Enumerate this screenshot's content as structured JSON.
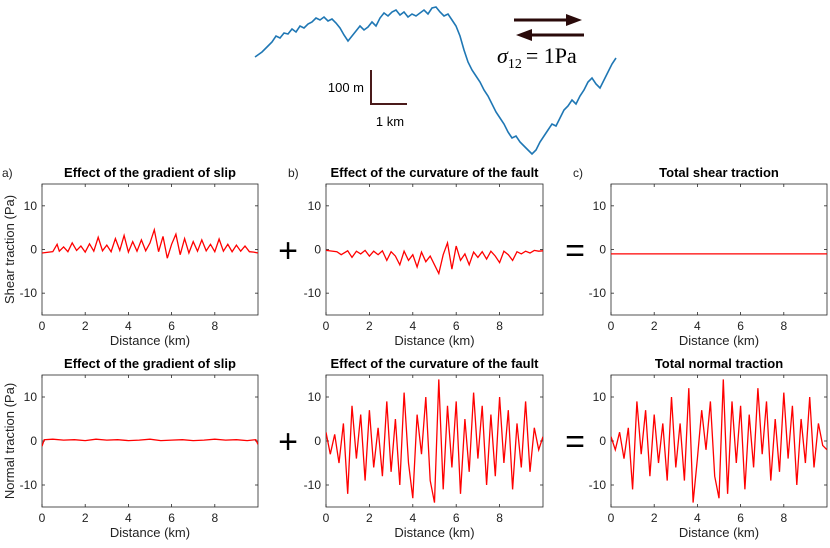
{
  "profile": {
    "scale_vertical_label": "100 m",
    "scale_horizontal_label": "1 km",
    "stress_label_symbol": "σ",
    "stress_label_subscript": "12",
    "stress_label_value": "= 1Pa",
    "line_color": "#1f77b4"
  },
  "chart_data": [
    {
      "type": "line",
      "panel_letter": "a)",
      "title": "Effect of the gradient of slip",
      "xlabel": "Distance (km)",
      "ylabel": "Shear traction (Pa)",
      "xlim": [
        0,
        10
      ],
      "ylim": [
        -15,
        15
      ],
      "xticks": [
        0,
        2,
        4,
        6,
        8
      ],
      "yticks": [
        10,
        0,
        -10
      ],
      "color": "#ff0000",
      "series": [
        {
          "x": [
            0,
            0.5,
            0.7,
            0.8,
            1,
            1.2,
            1.4,
            1.6,
            1.8,
            2,
            2.2,
            2.4,
            2.6,
            2.8,
            3,
            3.2,
            3.4,
            3.6,
            3.8,
            4,
            4.2,
            4.4,
            4.6,
            4.8,
            5,
            5.2,
            5.4,
            5.6,
            5.8,
            6,
            6.2,
            6.4,
            6.6,
            6.8,
            7,
            7.2,
            7.4,
            7.6,
            7.8,
            8,
            8.2,
            8.4,
            8.6,
            8.8,
            9,
            9.2,
            9.4,
            9.6,
            9.8,
            10
          ],
          "y": [
            -0.8,
            -0.5,
            1.2,
            -0.4,
            0.6,
            -0.5,
            1.5,
            -0.2,
            0.8,
            -0.6,
            1.3,
            -0.4,
            2.8,
            -0.3,
            1.0,
            -0.5,
            2.5,
            -0.2,
            3.2,
            -0.6,
            1.8,
            -0.4,
            2.2,
            -0.3,
            1.5,
            4.5,
            -0.5,
            3.0,
            -2.0,
            1.2,
            3.5,
            -1.2,
            2.5,
            -0.8,
            1.8,
            -0.4,
            2.2,
            -0.3,
            1.2,
            -0.5,
            2.4,
            -0.4,
            1.2,
            -0.5,
            1.0,
            -0.4,
            0.8,
            -0.5,
            -0.6,
            -0.8
          ]
        }
      ]
    },
    {
      "type": "line",
      "panel_letter": "b)",
      "title": "Effect of the curvature of the fault",
      "xlabel": "Distance (km)",
      "ylabel": "",
      "xlim": [
        0,
        10
      ],
      "ylim": [
        -15,
        15
      ],
      "xticks": [
        0,
        2,
        4,
        6,
        8
      ],
      "yticks": [
        10,
        0,
        -10
      ],
      "color": "#ff0000",
      "series": [
        {
          "x": [
            0,
            0.5,
            0.7,
            1,
            1.2,
            1.4,
            1.6,
            1.8,
            2,
            2.2,
            2.4,
            2.6,
            2.8,
            3,
            3.2,
            3.4,
            3.6,
            3.8,
            4,
            4.2,
            4.4,
            4.6,
            4.8,
            5,
            5.2,
            5.4,
            5.6,
            5.8,
            6,
            6.2,
            6.4,
            6.6,
            6.8,
            7,
            7.2,
            7.4,
            7.6,
            7.8,
            8,
            8.2,
            8.4,
            8.6,
            8.8,
            9,
            9.2,
            9.4,
            9.6,
            9.8,
            10
          ],
          "y": [
            -0.2,
            -0.5,
            -1.2,
            -0.3,
            -1.8,
            -0.4,
            -1.0,
            -0.2,
            -1.5,
            -0.4,
            -1.2,
            -0.3,
            -2.5,
            -0.5,
            -1.5,
            -3.5,
            -0.4,
            -2.5,
            -1.2,
            -4.0,
            -0.6,
            -2.8,
            -1.5,
            -3.5,
            -5.5,
            -1.2,
            1.5,
            -4.5,
            0.8,
            -2.5,
            -1.0,
            -3.5,
            -0.6,
            -1.8,
            -0.5,
            -2.2,
            -0.4,
            -1.5,
            -3.0,
            -0.4,
            -1.2,
            -2.5,
            -0.5,
            -1.0,
            -0.4,
            -0.8,
            -0.2,
            -0.4,
            -0.3
          ]
        }
      ]
    },
    {
      "type": "line",
      "panel_letter": "c)",
      "title": "Total shear traction",
      "xlabel": "Distance (km)",
      "ylabel": "",
      "xlim": [
        0,
        10
      ],
      "ylim": [
        -15,
        15
      ],
      "xticks": [
        0,
        2,
        4,
        6,
        8
      ],
      "yticks": [
        10,
        0,
        -10
      ],
      "color": "#ff0000",
      "series": [
        {
          "x": [
            0,
            2,
            4,
            6,
            8,
            10
          ],
          "y": [
            -1,
            -1,
            -1,
            -1,
            -1,
            -1
          ]
        }
      ]
    },
    {
      "type": "line",
      "panel_letter": "",
      "title": "Effect of the gradient of slip",
      "xlabel": "Distance (km)",
      "ylabel": "Normal traction (Pa)",
      "xlim": [
        0,
        10
      ],
      "ylim": [
        -15,
        15
      ],
      "xticks": [
        0,
        2,
        4,
        6,
        8
      ],
      "yticks": [
        10,
        0,
        -10
      ],
      "color": "#ff0000",
      "series": [
        {
          "x": [
            0,
            0.1,
            0.5,
            1,
            1.5,
            2,
            2.5,
            3,
            3.5,
            4,
            4.5,
            5,
            5.5,
            6,
            6.5,
            7,
            7.5,
            8,
            8.5,
            9,
            9.5,
            9.9,
            10
          ],
          "y": [
            -1.2,
            0.3,
            0.4,
            0.2,
            0.3,
            0.1,
            0.4,
            0.2,
            0.3,
            0.1,
            0.2,
            0.4,
            0.1,
            0.2,
            0.3,
            0.1,
            0.2,
            0.4,
            0.2,
            0.3,
            0.1,
            0.3,
            -0.8
          ]
        }
      ]
    },
    {
      "type": "line",
      "panel_letter": "",
      "title": "Effect of the curvature of the fault",
      "xlabel": "Distance (km)",
      "ylabel": "",
      "xlim": [
        0,
        10
      ],
      "ylim": [
        -15,
        15
      ],
      "xticks": [
        0,
        2,
        4,
        6,
        8
      ],
      "yticks": [
        10,
        0,
        -10
      ],
      "color": "#ff0000",
      "series": [
        {
          "x": [
            0,
            0.2,
            0.4,
            0.6,
            0.8,
            1.0,
            1.2,
            1.4,
            1.6,
            1.8,
            2.0,
            2.2,
            2.4,
            2.6,
            2.8,
            3.0,
            3.2,
            3.4,
            3.6,
            3.8,
            4.0,
            4.2,
            4.4,
            4.6,
            4.8,
            5.0,
            5.2,
            5.4,
            5.6,
            5.8,
            6.0,
            6.2,
            6.4,
            6.6,
            6.8,
            7.0,
            7.2,
            7.4,
            7.6,
            7.8,
            8.0,
            8.2,
            8.4,
            8.6,
            8.8,
            9.0,
            9.2,
            9.4,
            9.6,
            9.8,
            10
          ],
          "y": [
            2,
            -3,
            1.5,
            -5,
            4,
            -12,
            8,
            -4,
            6,
            -9,
            7,
            -6,
            3,
            -8,
            9,
            -7,
            5,
            -10,
            11,
            -5,
            -13,
            6,
            -3,
            10,
            -9,
            -14,
            14,
            -11,
            8,
            -6,
            9,
            -12,
            5,
            -7,
            11,
            -4,
            8,
            -10,
            6,
            -8,
            10,
            -5,
            7,
            -11,
            4,
            -6,
            9,
            -7,
            3,
            -2,
            1
          ]
        }
      ]
    },
    {
      "type": "line",
      "panel_letter": "",
      "title": "Total normal traction",
      "xlabel": "Distance (km)",
      "ylabel": "",
      "xlim": [
        0,
        10
      ],
      "ylim": [
        -15,
        15
      ],
      "xticks": [
        0,
        2,
        4,
        6,
        8
      ],
      "yticks": [
        10,
        0,
        -10
      ],
      "color": "#ff0000",
      "series": [
        {
          "x": [
            0,
            0.2,
            0.4,
            0.6,
            0.8,
            1.0,
            1.2,
            1.4,
            1.6,
            1.8,
            2.0,
            2.2,
            2.4,
            2.6,
            2.8,
            3.0,
            3.2,
            3.4,
            3.6,
            3.8,
            4.0,
            4.2,
            4.4,
            4.6,
            4.8,
            5.0,
            5.2,
            5.4,
            5.6,
            5.8,
            6.0,
            6.2,
            6.4,
            6.6,
            6.8,
            7.0,
            7.2,
            7.4,
            7.6,
            7.8,
            8.0,
            8.2,
            8.4,
            8.6,
            8.8,
            9.0,
            9.2,
            9.4,
            9.6,
            9.8,
            10
          ],
          "y": [
            1,
            -2,
            2,
            -4,
            3,
            -11,
            9,
            -3,
            7,
            -8,
            6,
            -5,
            4,
            -9,
            10,
            -6,
            4,
            -9,
            12,
            -14,
            -4,
            7,
            -2,
            9,
            -8,
            -13,
            14,
            -12,
            9,
            -5,
            8,
            -11,
            6,
            -6,
            12,
            -3,
            9,
            -9,
            5,
            -7,
            11,
            -4,
            8,
            -10,
            5,
            -5,
            10,
            -6,
            4,
            -1,
            -2
          ]
        }
      ]
    }
  ]
}
